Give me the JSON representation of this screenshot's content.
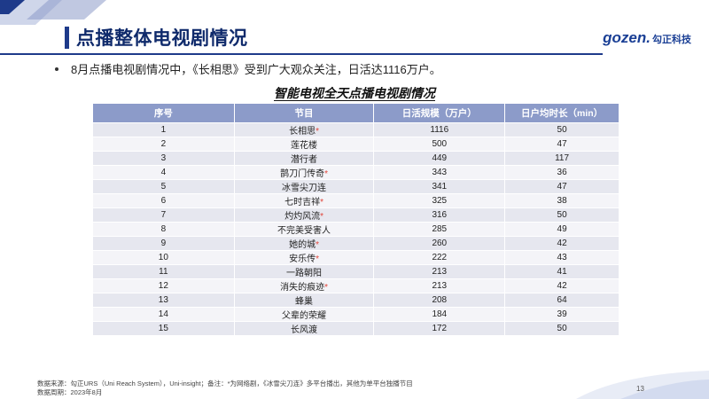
{
  "header": {
    "title": "点播整体电视剧情况",
    "logo_text": "gozen.",
    "logo_cn": "勾正科技"
  },
  "bullet": "8月点播电视剧情况中，《长相思》受到广大观众关注，日活达1116万户。",
  "table": {
    "title": "智能电视全天点播电视剧情况",
    "headers": [
      "序号",
      "节目",
      "日活规模（万户）",
      "日户均时长（min）"
    ],
    "rows": [
      {
        "rank": "1",
        "program": "长相思",
        "star": "*",
        "dau": "1116",
        "duration": "50"
      },
      {
        "rank": "2",
        "program": "莲花楼",
        "star": "",
        "dau": "500",
        "duration": "47"
      },
      {
        "rank": "3",
        "program": "潜行者",
        "star": "",
        "dau": "449",
        "duration": "117"
      },
      {
        "rank": "4",
        "program": "鹊刀门传奇",
        "star": "*",
        "dau": "343",
        "duration": "36"
      },
      {
        "rank": "5",
        "program": "冰雪尖刀连",
        "star": "",
        "dau": "341",
        "duration": "47"
      },
      {
        "rank": "6",
        "program": "七时吉祥",
        "star": "*",
        "dau": "325",
        "duration": "38"
      },
      {
        "rank": "7",
        "program": "灼灼风流",
        "star": "*",
        "dau": "316",
        "duration": "50"
      },
      {
        "rank": "8",
        "program": "不完美受害人",
        "star": "",
        "dau": "285",
        "duration": "49"
      },
      {
        "rank": "9",
        "program": "她的城",
        "star": "*",
        "dau": "260",
        "duration": "42"
      },
      {
        "rank": "10",
        "program": "安乐传",
        "star": "*",
        "dau": "222",
        "duration": "43"
      },
      {
        "rank": "11",
        "program": "一路朝阳",
        "star": "",
        "dau": "213",
        "duration": "41"
      },
      {
        "rank": "12",
        "program": "消失的痕迹",
        "star": "*",
        "dau": "213",
        "duration": "42"
      },
      {
        "rank": "13",
        "program": "蜂巢",
        "star": "",
        "dau": "208",
        "duration": "64"
      },
      {
        "rank": "14",
        "program": "父辈的荣耀",
        "star": "",
        "dau": "184",
        "duration": "39"
      },
      {
        "rank": "15",
        "program": "长风渡",
        "star": "",
        "dau": "172",
        "duration": "50"
      }
    ]
  },
  "footer": {
    "source": "数据来源：勾正URS（Uni Reach System），Uni-insight；备注：*为网络剧，《冰雪尖刀连》多平台播出，其他为单平台独播节目",
    "period": "数据周期：2023年8月",
    "page": "13"
  },
  "colors": {
    "brand": "#1e3a8a",
    "table_header": "#8c9bc9",
    "star": "#e0453a"
  }
}
